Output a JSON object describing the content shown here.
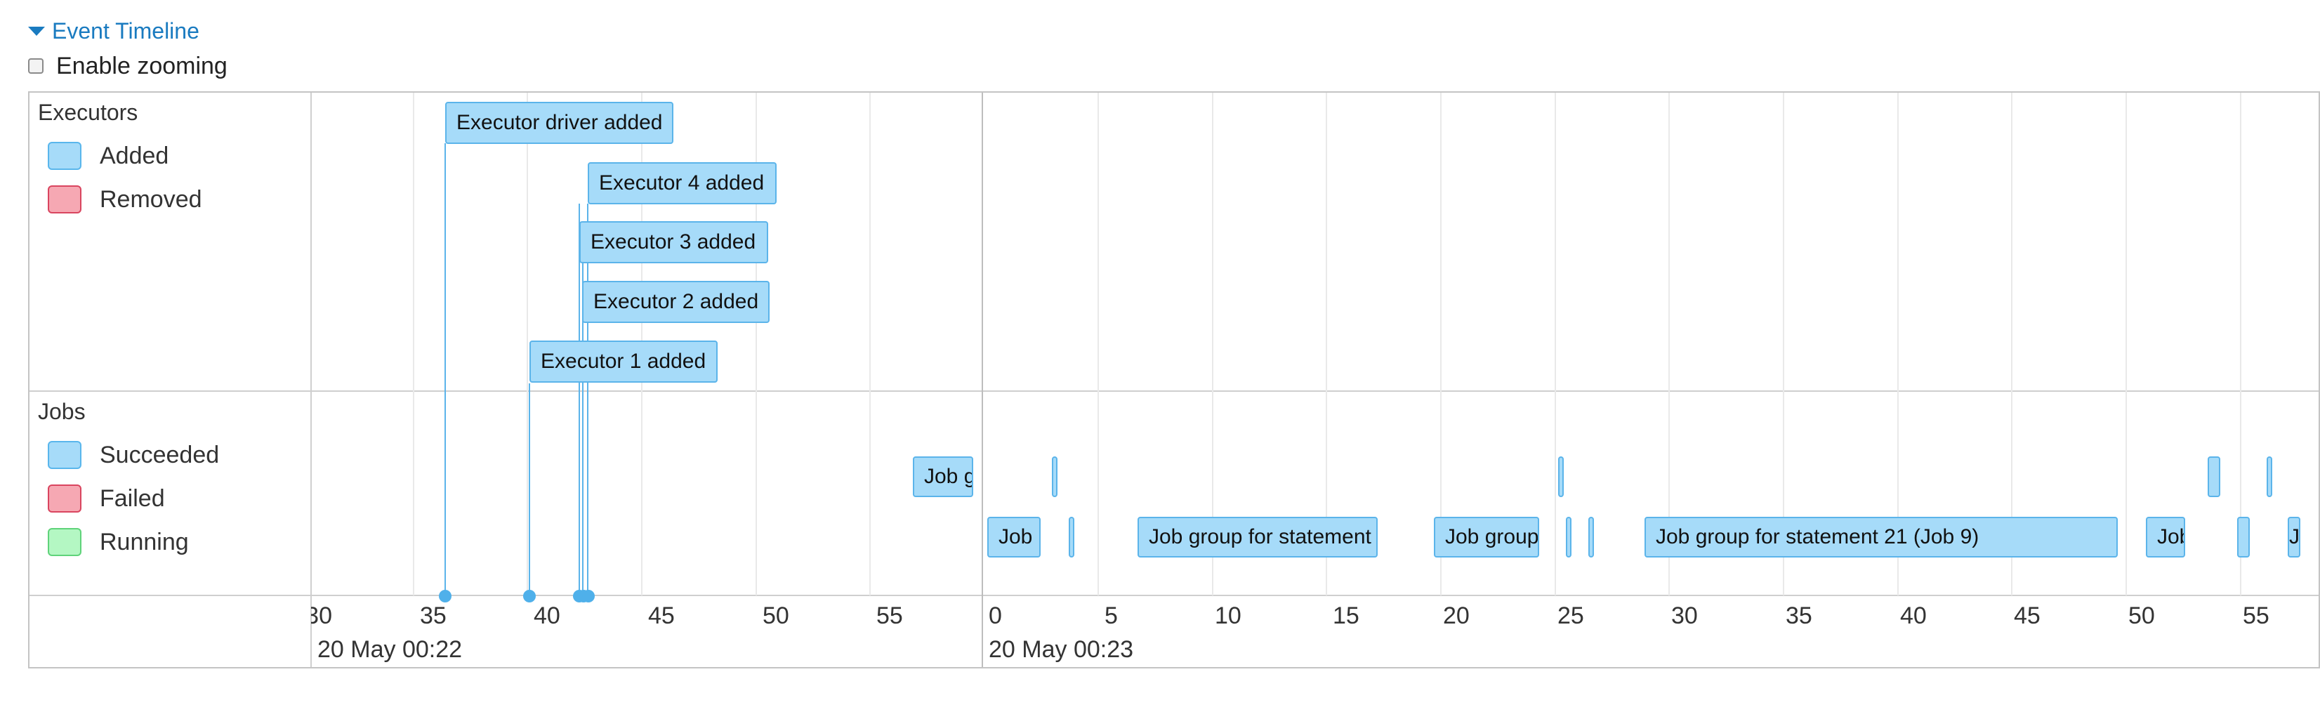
{
  "header": {
    "toggle_label": "Event Timeline",
    "zoom_label": "Enable zooming"
  },
  "executors_group": {
    "title": "Executors",
    "legend": {
      "added": "Added",
      "removed": "Removed"
    },
    "events": [
      {
        "label": "Executor driver added"
      },
      {
        "label": "Executor 4 added"
      },
      {
        "label": "Executor 3 added"
      },
      {
        "label": "Executor 2 added"
      },
      {
        "label": "Executor 1 added"
      }
    ]
  },
  "jobs_group": {
    "title": "Jobs",
    "legend": {
      "succeeded": "Succeeded",
      "failed": "Failed",
      "running": "Running"
    },
    "jobs": [
      {
        "label": "Job group for statement"
      },
      {
        "label": "Job group for statement"
      },
      {
        "label": "Job group for statement"
      },
      {
        "label": "Job group for statement"
      },
      {
        "label": "Job group for statement 21 (Job 9)"
      },
      {
        "label": "Job group for statement"
      },
      {
        "label": "Job group for statement"
      }
    ]
  },
  "axis": {
    "minute1_label": "20 May 00:22",
    "minute2_label": "20 May 00:23",
    "minute1_ticks": [
      "30",
      "35",
      "40",
      "45",
      "50",
      "55"
    ],
    "minute2_ticks": [
      "0",
      "5",
      "10",
      "15",
      "20",
      "25",
      "30",
      "35",
      "40",
      "45",
      "50",
      "55"
    ]
  },
  "colors": {
    "link": "#1a7bc0",
    "succeeded_fill": "#a6dbf9",
    "succeeded_border": "#5bb4ea",
    "failed_fill": "#f6a8b3",
    "running_fill": "#b4f7c3"
  }
}
